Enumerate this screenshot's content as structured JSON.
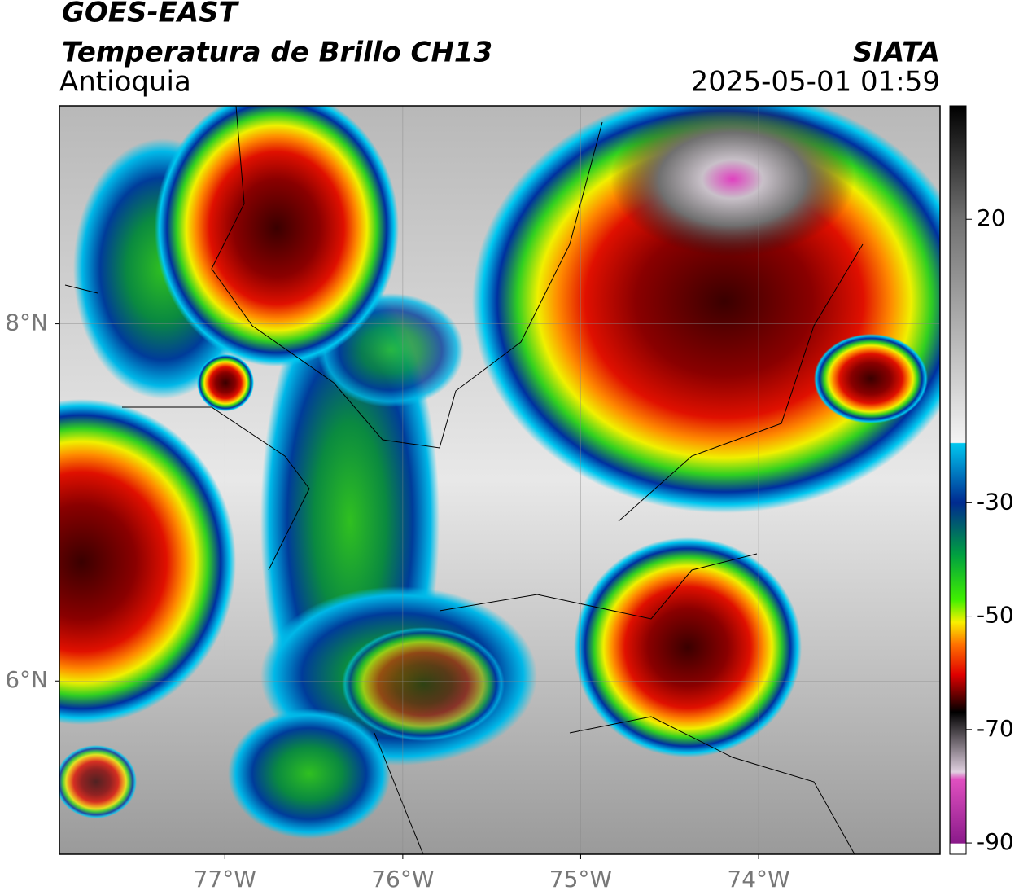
{
  "chart_data": {
    "type": "map",
    "title": "GOES-EAST",
    "subtitle": "Temperatura de Brillo CH13",
    "region": "Antioquia",
    "source": "SIATA",
    "datetime": "2025-05-01 01:59",
    "xlim": [
      -77.93,
      -72.98
    ],
    "ylim": [
      5.03,
      9.22
    ],
    "xticks": [
      {
        "value": -77,
        "label": "77°W"
      },
      {
        "value": -76,
        "label": "76°W"
      },
      {
        "value": -75,
        "label": "75°W"
      },
      {
        "value": -74,
        "label": "74°W"
      }
    ],
    "yticks": [
      {
        "value": 6,
        "label": "6°N"
      },
      {
        "value": 8,
        "label": "8°N"
      }
    ],
    "grid": true,
    "clim": [
      -92,
      40
    ],
    "cticks": [
      20,
      -30,
      -50,
      -70,
      -90
    ]
  }
}
